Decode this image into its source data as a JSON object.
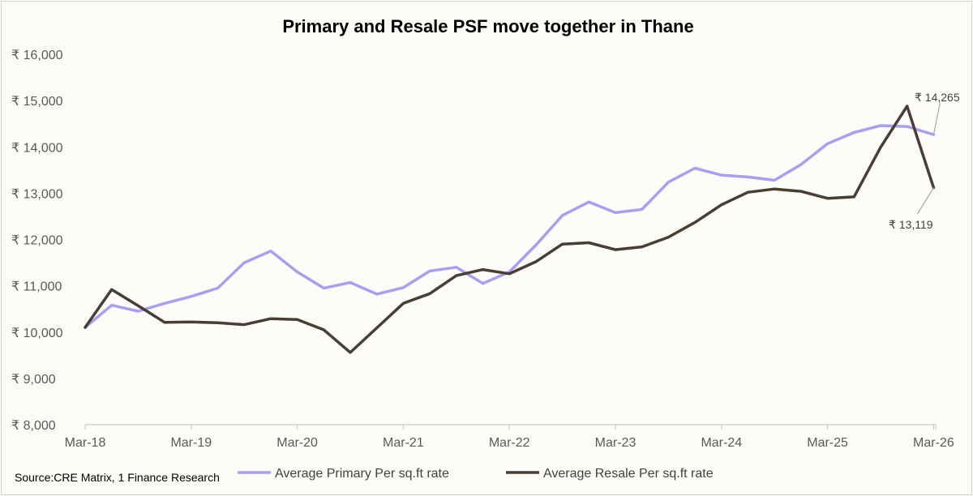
{
  "chart_data": {
    "type": "line",
    "title": "Primary and Resale PSF move together in Thane",
    "xlabel": "",
    "ylabel": "",
    "ylim": [
      8000,
      16000
    ],
    "y_ticks": [
      8000,
      9000,
      10000,
      11000,
      12000,
      13000,
      14000,
      15000,
      16000
    ],
    "y_tick_labels": [
      "₹ 8,000",
      "₹ 9,000",
      "₹ 10,000",
      "₹ 11,000",
      "₹ 12,000",
      "₹ 13,000",
      "₹ 14,000",
      "₹ 15,000",
      "₹ 16,000"
    ],
    "x_tick_labels": [
      "Mar-18",
      "Mar-19",
      "Mar-20",
      "Mar-21",
      "Mar-22",
      "Mar-23",
      "Mar-24",
      "Mar-25",
      "Mar-26"
    ],
    "x": [
      "Mar-18",
      "Jun-18",
      "Sep-18",
      "Dec-18",
      "Mar-19",
      "Jun-19",
      "Sep-19",
      "Dec-19",
      "Mar-20",
      "Jun-20",
      "Sep-20",
      "Dec-20",
      "Mar-21",
      "Jun-21",
      "Sep-21",
      "Dec-21",
      "Mar-22",
      "Jun-22",
      "Sep-22",
      "Dec-22",
      "Mar-23",
      "Jun-23",
      "Sep-23",
      "Dec-23",
      "Mar-24",
      "Jun-24",
      "Sep-24",
      "Dec-24",
      "Mar-25",
      "Jun-25",
      "Sep-25",
      "Dec-25",
      "Feb-26"
    ],
    "series": [
      {
        "name": "Average Primary Per sq.ft rate",
        "color": "#a99ff0",
        "values": [
          10100,
          10580,
          10450,
          10620,
          10770,
          10950,
          11500,
          11750,
          11300,
          10950,
          11070,
          10820,
          10960,
          11320,
          11400,
          11050,
          11300,
          11880,
          12520,
          12810,
          12580,
          12650,
          13240,
          13540,
          13390,
          13350,
          13280,
          13620,
          14070,
          14310,
          14460,
          14440,
          14265
        ]
      },
      {
        "name": "Average Resale Per sq.ft rate",
        "color": "#4a3d33",
        "values": [
          10100,
          10920,
          10570,
          10210,
          10220,
          10200,
          10160,
          10290,
          10270,
          10050,
          9560,
          10090,
          10620,
          10830,
          11220,
          11350,
          11260,
          11520,
          11900,
          11930,
          11780,
          11840,
          12050,
          12370,
          12750,
          13020,
          13090,
          13040,
          12890,
          12920,
          13990,
          14880,
          13119
        ]
      }
    ],
    "annotations": [
      "₹ 14,265",
      "₹ 13,119"
    ],
    "legend": "bottom",
    "grid": false
  },
  "source": "Source:CRE Matrix, 1 Finance Research"
}
